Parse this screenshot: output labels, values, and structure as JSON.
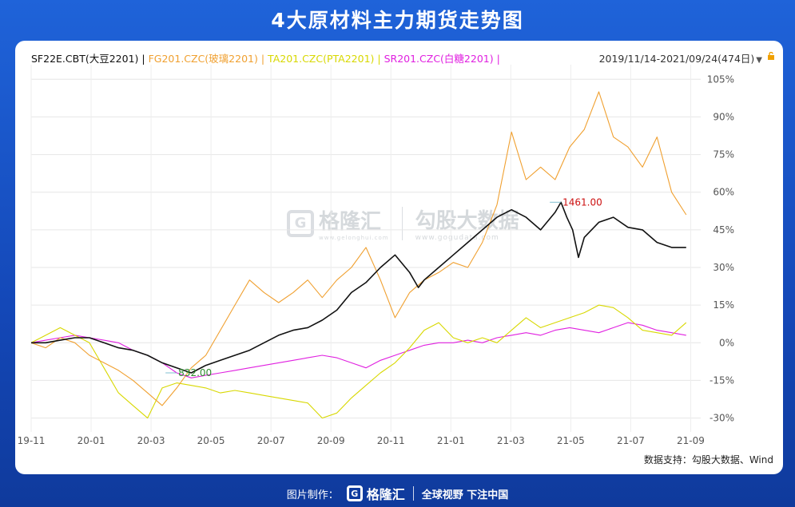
{
  "title": "4大原材料主力期货走势图",
  "header": {
    "legend": [
      {
        "text": "SF22E.CBT(大豆2201) | ",
        "color": "#111111"
      },
      {
        "text": "FG201.CZC(玻璃2201) | ",
        "color": "#f0a030"
      },
      {
        "text": "TA201.CZC(PTA2201) | ",
        "color": "#d8d800"
      },
      {
        "text": "SR201.CZC(白糖2201) | ",
        "color": "#e020e0"
      }
    ],
    "date_range": "2019/11/14-2021/09/24(474日)",
    "dropdown_glyph": "▼"
  },
  "watermark": {
    "logo_glyph": "G",
    "brand": "格隆汇",
    "brand_url": "www.gelonghui.com",
    "brand2": "勾股大数据",
    "url2": "www.gogudata.com"
  },
  "source": "数据支持：勾股大数据、Wind",
  "footer": {
    "made_by": "图片制作：",
    "logo_glyph": "G",
    "brand": "格隆汇",
    "slogan": "全球视野 下注中国"
  },
  "chart_data": {
    "type": "line",
    "x_ticks": [
      "19-11",
      "20-01",
      "20-03",
      "20-05",
      "20-07",
      "20-09",
      "20-11",
      "21-01",
      "21-03",
      "21-05",
      "21-07",
      "21-09"
    ],
    "y_ticks": [
      "105%",
      "90%",
      "75%",
      "60%",
      "45%",
      "30%",
      "15%",
      "0%",
      "-15%",
      "-30%"
    ],
    "ylim": [
      -33,
      107
    ],
    "xlim": [
      0,
      23
    ],
    "grid": true,
    "legend_position": "top-left",
    "annotations": [
      {
        "text": "832.00",
        "x": 5.0,
        "y": -12,
        "color": "#2e8b2e"
      },
      {
        "text": "1461.00",
        "x": 18.2,
        "y": 56,
        "color": "#cc1111"
      }
    ],
    "series": [
      {
        "name": "SF22E.CBT(大豆2201)",
        "color": "#111111",
        "x": [
          0,
          0.5,
          1,
          1.5,
          2,
          2.5,
          3,
          3.5,
          4,
          4.5,
          5,
          5.5,
          6,
          6.5,
          7,
          7.5,
          8,
          8.5,
          9,
          9.5,
          10,
          10.5,
          11,
          11.5,
          12,
          12.5,
          13,
          13.3,
          13.5,
          14,
          14.5,
          15,
          15.5,
          16,
          16.5,
          17,
          17.5,
          18,
          18.2,
          18.4,
          18.6,
          18.8,
          19,
          19.5,
          20,
          20.5,
          21,
          21.5,
          22,
          22.5
        ],
        "y": [
          0,
          0,
          1,
          2,
          2,
          0,
          -2,
          -3,
          -5,
          -8,
          -10,
          -12,
          -9,
          -7,
          -5,
          -3,
          0,
          3,
          5,
          6,
          9,
          13,
          20,
          24,
          30,
          35,
          28,
          22,
          25,
          30,
          35,
          40,
          45,
          50,
          53,
          50,
          45,
          52,
          56,
          50,
          45,
          34,
          42,
          48,
          50,
          46,
          45,
          40,
          38,
          38
        ]
      },
      {
        "name": "FG201.CZC(玻璃2201)",
        "color": "#f0a030",
        "x": [
          0,
          0.5,
          1,
          1.5,
          2,
          2.5,
          3,
          3.5,
          4,
          4.5,
          5,
          5.5,
          6,
          6.5,
          7,
          7.5,
          8,
          8.5,
          9,
          9.5,
          10,
          10.5,
          11,
          11.5,
          12,
          12.5,
          13,
          13.5,
          14,
          14.5,
          15,
          15.5,
          16,
          16.5,
          17,
          17.5,
          18,
          18.5,
          19,
          19.5,
          20,
          20.5,
          21,
          21.5,
          22,
          22.5
        ],
        "y": [
          0,
          -2,
          2,
          0,
          -5,
          -8,
          -11,
          -15,
          -20,
          -25,
          -18,
          -10,
          -5,
          5,
          15,
          25,
          20,
          16,
          20,
          25,
          18,
          25,
          30,
          38,
          25,
          10,
          20,
          25,
          28,
          32,
          30,
          40,
          55,
          84,
          65,
          70,
          65,
          78,
          85,
          100,
          82,
          78,
          70,
          82,
          60,
          51
        ]
      },
      {
        "name": "TA201.CZC(PTA2201)",
        "color": "#d8d800",
        "x": [
          0,
          0.5,
          1,
          1.5,
          2,
          2.5,
          3,
          3.5,
          4,
          4.5,
          5,
          5.5,
          6,
          6.5,
          7,
          7.5,
          8,
          8.5,
          9,
          9.5,
          10,
          10.5,
          11,
          11.5,
          12,
          12.5,
          13,
          13.5,
          14,
          14.5,
          15,
          15.5,
          16,
          16.5,
          17,
          17.5,
          18,
          18.5,
          19,
          19.5,
          20,
          20.5,
          21,
          21.5,
          22,
          22.5
        ],
        "y": [
          0,
          3,
          6,
          3,
          0,
          -10,
          -20,
          -25,
          -30,
          -18,
          -16,
          -17,
          -18,
          -20,
          -19,
          -20,
          -21,
          -22,
          -23,
          -24,
          -30,
          -28,
          -22,
          -17,
          -12,
          -8,
          -2,
          5,
          8,
          2,
          0,
          2,
          0,
          5,
          10,
          6,
          8,
          10,
          12,
          15,
          14,
          10,
          5,
          4,
          3,
          8
        ]
      },
      {
        "name": "SR201.CZC(白糖2201)",
        "color": "#e020e0",
        "x": [
          0,
          0.5,
          1,
          1.5,
          2,
          2.5,
          3,
          3.5,
          4,
          4.5,
          5,
          5.5,
          6,
          6.5,
          7,
          7.5,
          8,
          8.5,
          9,
          9.5,
          10,
          10.5,
          11,
          11.5,
          12,
          12.5,
          13,
          13.5,
          14,
          14.5,
          15,
          15.5,
          16,
          16.5,
          17,
          17.5,
          18,
          18.5,
          19,
          19.5,
          20,
          20.5,
          21,
          21.5,
          22,
          22.5
        ],
        "y": [
          0,
          1,
          2,
          3,
          2,
          1,
          0,
          -3,
          -5,
          -8,
          -12,
          -14,
          -13,
          -12,
          -11,
          -10,
          -9,
          -8,
          -7,
          -6,
          -5,
          -6,
          -8,
          -10,
          -7,
          -5,
          -3,
          -1,
          0,
          0,
          1,
          0,
          2,
          3,
          4,
          3,
          5,
          6,
          5,
          4,
          6,
          8,
          7,
          5,
          4,
          3
        ]
      }
    ]
  }
}
